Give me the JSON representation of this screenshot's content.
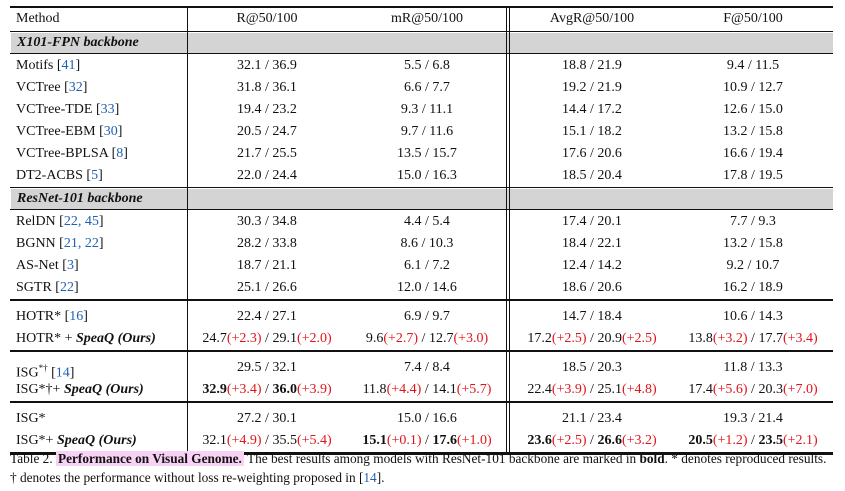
{
  "headers": [
    "Method",
    "R@50/100",
    "mR@50/100",
    "AvgR@50/100",
    "F@50/100"
  ],
  "sections": [
    {
      "title": "X101-FPN backbone",
      "rows": [
        {
          "method": "Motifs",
          "cite": "41",
          "r": "32.1 / 36.9",
          "mr": "5.5 / 6.8",
          "avg": "18.8 / 21.9",
          "f": "9.4 / 11.5"
        },
        {
          "method": "VCTree",
          "cite": "32",
          "r": "31.8 / 36.1",
          "mr": "6.6 / 7.7",
          "avg": "19.2 / 21.9",
          "f": "10.9 / 12.7"
        },
        {
          "method": "VCTree-TDE",
          "cite": "33",
          "r": "19.4 / 23.2",
          "mr": "9.3 / 11.1",
          "avg": "14.4 / 17.2",
          "f": "12.6 / 15.0"
        },
        {
          "method": "VCTree-EBM",
          "cite": "30",
          "r": "20.5 / 24.7",
          "mr": "9.7 / 11.6",
          "avg": "15.1 / 18.2",
          "f": "13.2 / 15.8"
        },
        {
          "method": "VCTree-BPLSA",
          "cite": "8",
          "r": "21.7 / 25.5",
          "mr": "13.5 / 15.7",
          "avg": "17.6 / 20.6",
          "f": "16.6 / 19.4"
        },
        {
          "method": "DT2-ACBS",
          "cite": "5",
          "r": "22.0 / 24.4",
          "mr": "15.0 / 16.3",
          "avg": "18.5 / 20.4",
          "f": "17.8 / 19.5"
        }
      ]
    },
    {
      "title": "ResNet-101 backbone",
      "rows": [
        {
          "method": "RelDN",
          "cite": "22, 45",
          "r": "30.3 / 34.8",
          "mr": "4.4 / 5.4",
          "avg": "17.4 / 20.1",
          "f": "7.7 / 9.3"
        },
        {
          "method": "BGNN",
          "cite": "21, 22",
          "r": "28.2 / 33.8",
          "mr": "8.6 / 10.3",
          "avg": "18.4 / 22.1",
          "f": "13.2 / 15.8"
        },
        {
          "method": "AS-Net",
          "cite": "3",
          "r": "18.7 / 21.1",
          "mr": "6.1 / 7.2",
          "avg": "12.4 / 14.2",
          "f": "9.2 / 10.7"
        },
        {
          "method": "SGTR",
          "cite": "22",
          "r": "25.1 / 26.6",
          "mr": "12.0 / 14.6",
          "avg": "18.6 / 20.6",
          "f": "16.2 / 18.9"
        }
      ]
    }
  ],
  "groups": [
    {
      "base": {
        "method": "HOTR*",
        "cite": "16",
        "r": "22.4 / 27.1",
        "mr": "6.9 / 9.7",
        "avg": "14.7 / 18.4",
        "f": "10.6 / 14.3"
      },
      "ours": {
        "prefix": "HOTR* + ",
        "name": "SpeaQ (Ours)",
        "r": {
          "a": "24.7",
          "ad": "(+2.3)",
          "b": "29.1",
          "bd": "(+2.0)",
          "bold_a": false,
          "bold_b": false
        },
        "mr": {
          "a": "9.6",
          "ad": "(+2.7)",
          "b": "12.7",
          "bd": "(+3.0)",
          "bold_a": false,
          "bold_b": false
        },
        "avg": {
          "a": "17.2",
          "ad": "(+2.5)",
          "b": "20.9",
          "bd": "(+2.5)",
          "bold_a": false,
          "bold_b": false
        },
        "f": {
          "a": "13.8",
          "ad": "(+3.2)",
          "b": "17.7",
          "bd": "(+3.4)",
          "bold_a": false,
          "bold_b": false
        }
      }
    },
    {
      "base": {
        "method": "ISG",
        "mark": "*†",
        "cite": "14",
        "r": "29.5 / 32.1",
        "mr": "7.4 / 8.4",
        "avg": "18.5 / 20.3",
        "f": "11.8 / 13.3"
      },
      "ours": {
        "prefix": "ISG*†+ ",
        "name": "SpeaQ (Ours)",
        "r": {
          "a": "32.9",
          "ad": "(+3.4)",
          "b": "36.0",
          "bd": "(+3.9)",
          "bold_a": true,
          "bold_b": true
        },
        "mr": {
          "a": "11.8",
          "ad": "(+4.4)",
          "b": "14.1",
          "bd": "(+5.7)",
          "bold_a": false,
          "bold_b": false
        },
        "avg": {
          "a": "22.4",
          "ad": "(+3.9)",
          "b": "25.1",
          "bd": "(+4.8)",
          "bold_a": false,
          "bold_b": false
        },
        "f": {
          "a": "17.4",
          "ad": "(+5.6)",
          "b": "20.3",
          "bd": "(+7.0)",
          "bold_a": false,
          "bold_b": false
        }
      }
    },
    {
      "base": {
        "method": "ISG*",
        "cite": "",
        "r": "27.2 / 30.1",
        "mr": "15.0 / 16.6",
        "avg": "21.1 / 23.4",
        "f": "19.3 / 21.4"
      },
      "ours": {
        "prefix": "ISG*+ ",
        "name": "SpeaQ (Ours)",
        "r": {
          "a": "32.1",
          "ad": "(+4.9)",
          "b": "35.5",
          "bd": "(+5.4)",
          "bold_a": false,
          "bold_b": false
        },
        "mr": {
          "a": "15.1",
          "ad": "(+0.1)",
          "b": "17.6",
          "bd": "(+1.0)",
          "bold_a": true,
          "bold_b": true
        },
        "avg": {
          "a": "23.6",
          "ad": "(+2.5)",
          "b": "26.6",
          "bd": "(+3.2)",
          "bold_a": true,
          "bold_b": true
        },
        "f": {
          "a": "20.5",
          "ad": "(+1.2)",
          "b": "23.5",
          "bd": "(+2.1)",
          "bold_a": true,
          "bold_b": true
        }
      }
    }
  ],
  "caption": {
    "label": "Table 2.",
    "title": "Performance on Visual Genome.",
    "text1": "The best results among models with ResNet-101 backbone are marked in",
    "bold_word": "bold",
    "text2": ". * denotes reproduced results. † denotes the performance without loss re-weighting proposed in [",
    "cite": "14",
    "text3": "]."
  }
}
